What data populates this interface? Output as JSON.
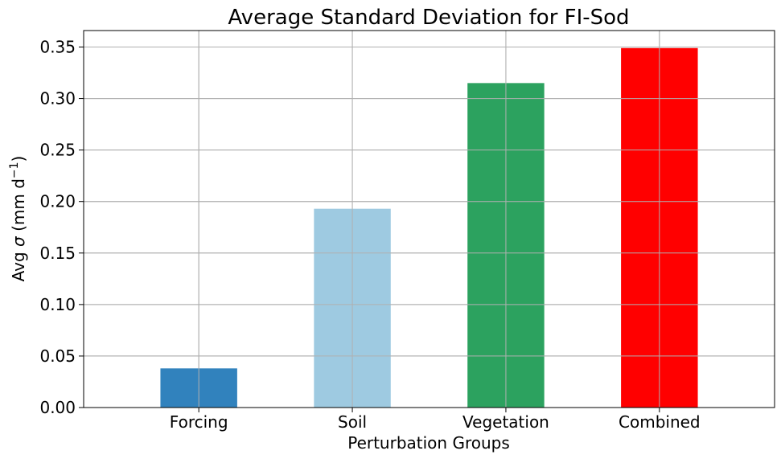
{
  "chart_data": {
    "type": "bar",
    "title": "Average Standard Deviation for FI-Sod",
    "xlabel": "Perturbation Groups",
    "ylabel": {
      "prefix": "Avg ",
      "sigma": "σ",
      "middle": " (mm d",
      "exponent": "−1",
      "suffix": ")"
    },
    "categories": [
      "Forcing",
      "Soil",
      "Vegetation",
      "Combined"
    ],
    "values": [
      0.038,
      0.193,
      0.315,
      0.349
    ],
    "colors": [
      "#3182bd",
      "#9ecae1",
      "#2ca25f",
      "#ff0000"
    ],
    "ylim": [
      0,
      0.366
    ],
    "yticks": [
      0.0,
      0.05,
      0.1,
      0.15,
      0.2,
      0.25,
      0.3,
      0.35
    ],
    "ytick_labels": [
      "0.00",
      "0.05",
      "0.10",
      "0.15",
      "0.20",
      "0.25",
      "0.30",
      "0.35"
    ],
    "grid": true,
    "grid_color": "#b0b0b0"
  }
}
